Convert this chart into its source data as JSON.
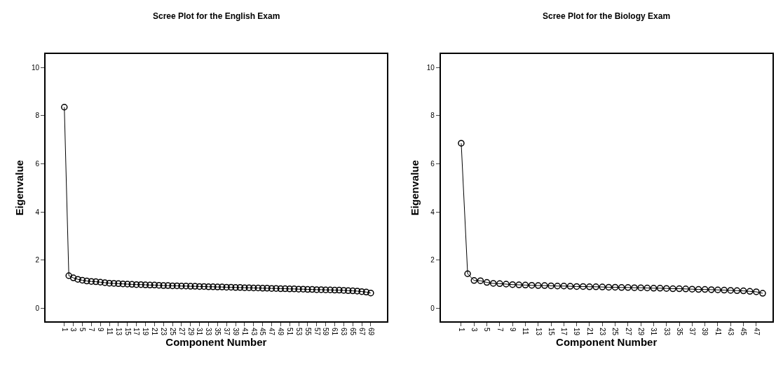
{
  "chart_data": [
    {
      "type": "line",
      "title": "Scree Plot for the English Exam",
      "xlabel": "Component Number",
      "ylabel": "Eigenvalue",
      "marker": "circle",
      "xlim": [
        -3.2,
        72.6
      ],
      "ylim": [
        -0.55,
        10.55
      ],
      "yticks": [
        0,
        2,
        4,
        6,
        8,
        10
      ],
      "xticks": [
        1,
        3,
        5,
        7,
        9,
        11,
        13,
        15,
        17,
        19,
        21,
        23,
        25,
        27,
        29,
        31,
        33,
        35,
        37,
        39,
        41,
        43,
        45,
        47,
        49,
        51,
        53,
        55,
        57,
        59,
        61,
        63,
        65,
        67,
        69
      ],
      "series": [
        {
          "color": "#000000",
          "x": [
            1,
            2,
            3,
            4,
            5,
            6,
            7,
            8,
            9,
            10,
            11,
            12,
            13,
            14,
            15,
            16,
            17,
            18,
            19,
            20,
            21,
            22,
            23,
            24,
            25,
            26,
            27,
            28,
            29,
            30,
            31,
            32,
            33,
            34,
            35,
            36,
            37,
            38,
            39,
            40,
            41,
            42,
            43,
            44,
            45,
            46,
            47,
            48,
            49,
            50,
            51,
            52,
            53,
            54,
            55,
            56,
            57,
            58,
            59,
            60,
            61,
            62,
            63,
            64,
            65,
            66,
            67,
            68,
            69
          ],
          "values": [
            8.35,
            1.35,
            1.26,
            1.2,
            1.16,
            1.13,
            1.11,
            1.1,
            1.08,
            1.06,
            1.04,
            1.03,
            1.02,
            1.01,
            1.0,
            0.99,
            0.98,
            0.98,
            0.97,
            0.96,
            0.96,
            0.95,
            0.94,
            0.94,
            0.93,
            0.93,
            0.92,
            0.92,
            0.91,
            0.91,
            0.9,
            0.9,
            0.89,
            0.89,
            0.88,
            0.88,
            0.87,
            0.87,
            0.86,
            0.86,
            0.85,
            0.85,
            0.84,
            0.84,
            0.83,
            0.83,
            0.82,
            0.82,
            0.81,
            0.81,
            0.8,
            0.8,
            0.79,
            0.79,
            0.78,
            0.78,
            0.77,
            0.77,
            0.76,
            0.76,
            0.75,
            0.75,
            0.74,
            0.73,
            0.72,
            0.71,
            0.69,
            0.67,
            0.63
          ]
        }
      ]
    },
    {
      "type": "line",
      "title": "Scree Plot for the Biology Exam",
      "xlabel": "Component Number",
      "ylabel": "Eigenvalue",
      "marker": "circle",
      "xlim": [
        -2.2,
        49.5
      ],
      "ylim": [
        -0.55,
        10.55
      ],
      "yticks": [
        0,
        2,
        4,
        6,
        8,
        10
      ],
      "xticks": [
        1,
        3,
        5,
        7,
        9,
        11,
        13,
        15,
        17,
        19,
        21,
        23,
        25,
        27,
        29,
        31,
        33,
        35,
        37,
        39,
        41,
        43,
        45,
        47
      ],
      "series": [
        {
          "color": "#000000",
          "x": [
            1,
            2,
            3,
            4,
            5,
            6,
            7,
            8,
            9,
            10,
            11,
            12,
            13,
            14,
            15,
            16,
            17,
            18,
            19,
            20,
            21,
            22,
            23,
            24,
            25,
            26,
            27,
            28,
            29,
            30,
            31,
            32,
            33,
            34,
            35,
            36,
            37,
            38,
            39,
            40,
            41,
            42,
            43,
            44,
            45,
            46,
            47,
            48
          ],
          "values": [
            6.85,
            1.43,
            1.15,
            1.14,
            1.07,
            1.03,
            1.02,
            1.0,
            0.98,
            0.97,
            0.96,
            0.95,
            0.94,
            0.94,
            0.93,
            0.92,
            0.92,
            0.91,
            0.9,
            0.9,
            0.89,
            0.89,
            0.88,
            0.87,
            0.87,
            0.86,
            0.86,
            0.85,
            0.85,
            0.84,
            0.83,
            0.83,
            0.82,
            0.81,
            0.81,
            0.8,
            0.79,
            0.78,
            0.78,
            0.77,
            0.76,
            0.75,
            0.74,
            0.73,
            0.72,
            0.7,
            0.68,
            0.62
          ]
        }
      ]
    }
  ]
}
